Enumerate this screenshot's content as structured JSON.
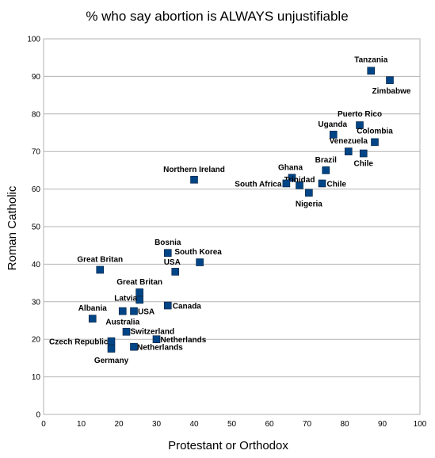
{
  "chart_data": {
    "type": "scatter",
    "title": "% who say abortion is ALWAYS unjustifiable",
    "xlabel": "Protestant or Orthodox",
    "ylabel": "Roman Catholic",
    "xlim": [
      0,
      100
    ],
    "ylim": [
      0,
      100
    ],
    "xticks": [
      0,
      10,
      20,
      30,
      40,
      50,
      60,
      70,
      80,
      90,
      100
    ],
    "yticks": [
      0,
      10,
      20,
      30,
      40,
      50,
      60,
      70,
      80,
      90,
      100
    ],
    "grid": "horizontal",
    "legend": "none",
    "marker_color": "#004586",
    "points": [
      {
        "label": "Tanzania",
        "x": 87,
        "y": 91.5
      },
      {
        "label": "Zimbabwe",
        "x": 92,
        "y": 89
      },
      {
        "label": "Puerto Rico",
        "x": 84,
        "y": 77
      },
      {
        "label": "Uganda",
        "x": 77,
        "y": 74.5
      },
      {
        "label": "Colombia",
        "x": 88,
        "y": 72.5
      },
      {
        "label": "Venezuela",
        "x": 81,
        "y": 70
      },
      {
        "label": "Chile",
        "x": 85,
        "y": 69.5
      },
      {
        "label": "Brazil",
        "x": 75,
        "y": 65
      },
      {
        "label": "Ghana",
        "x": 66,
        "y": 63
      },
      {
        "label": "Trinidad",
        "x": 68,
        "y": 61
      },
      {
        "label": "Chile",
        "x": 74,
        "y": 61.5
      },
      {
        "label": "South Africa",
        "x": 64.5,
        "y": 61.5
      },
      {
        "label": "Nigeria",
        "x": 70.5,
        "y": 59
      },
      {
        "label": "Northern Ireland",
        "x": 40,
        "y": 62.5
      },
      {
        "label": "Bosnia",
        "x": 33,
        "y": 43
      },
      {
        "label": "South Korea",
        "x": 41.5,
        "y": 40.5
      },
      {
        "label": "USA",
        "x": 35,
        "y": 38
      },
      {
        "label": "Great Britan",
        "x": 15,
        "y": 38.5
      },
      {
        "label": "Great Britan",
        "x": 25.5,
        "y": 32.5
      },
      {
        "label": "Latvia",
        "x": 25.5,
        "y": 30.5
      },
      {
        "label": "Canada",
        "x": 33,
        "y": 29
      },
      {
        "label": "USA",
        "x": 24,
        "y": 27.5
      },
      {
        "label": "Australia",
        "x": 21,
        "y": 27.5
      },
      {
        "label": "Albania",
        "x": 13,
        "y": 25.5
      },
      {
        "label": "Switzerland",
        "x": 22,
        "y": 22
      },
      {
        "label": "Netherlands",
        "x": 30,
        "y": 20
      },
      {
        "label": "Czech Republic",
        "x": 18,
        "y": 19.5
      },
      {
        "label": "Netherlands",
        "x": 24,
        "y": 18
      },
      {
        "label": "Germany",
        "x": 18,
        "y": 17.5
      }
    ]
  }
}
